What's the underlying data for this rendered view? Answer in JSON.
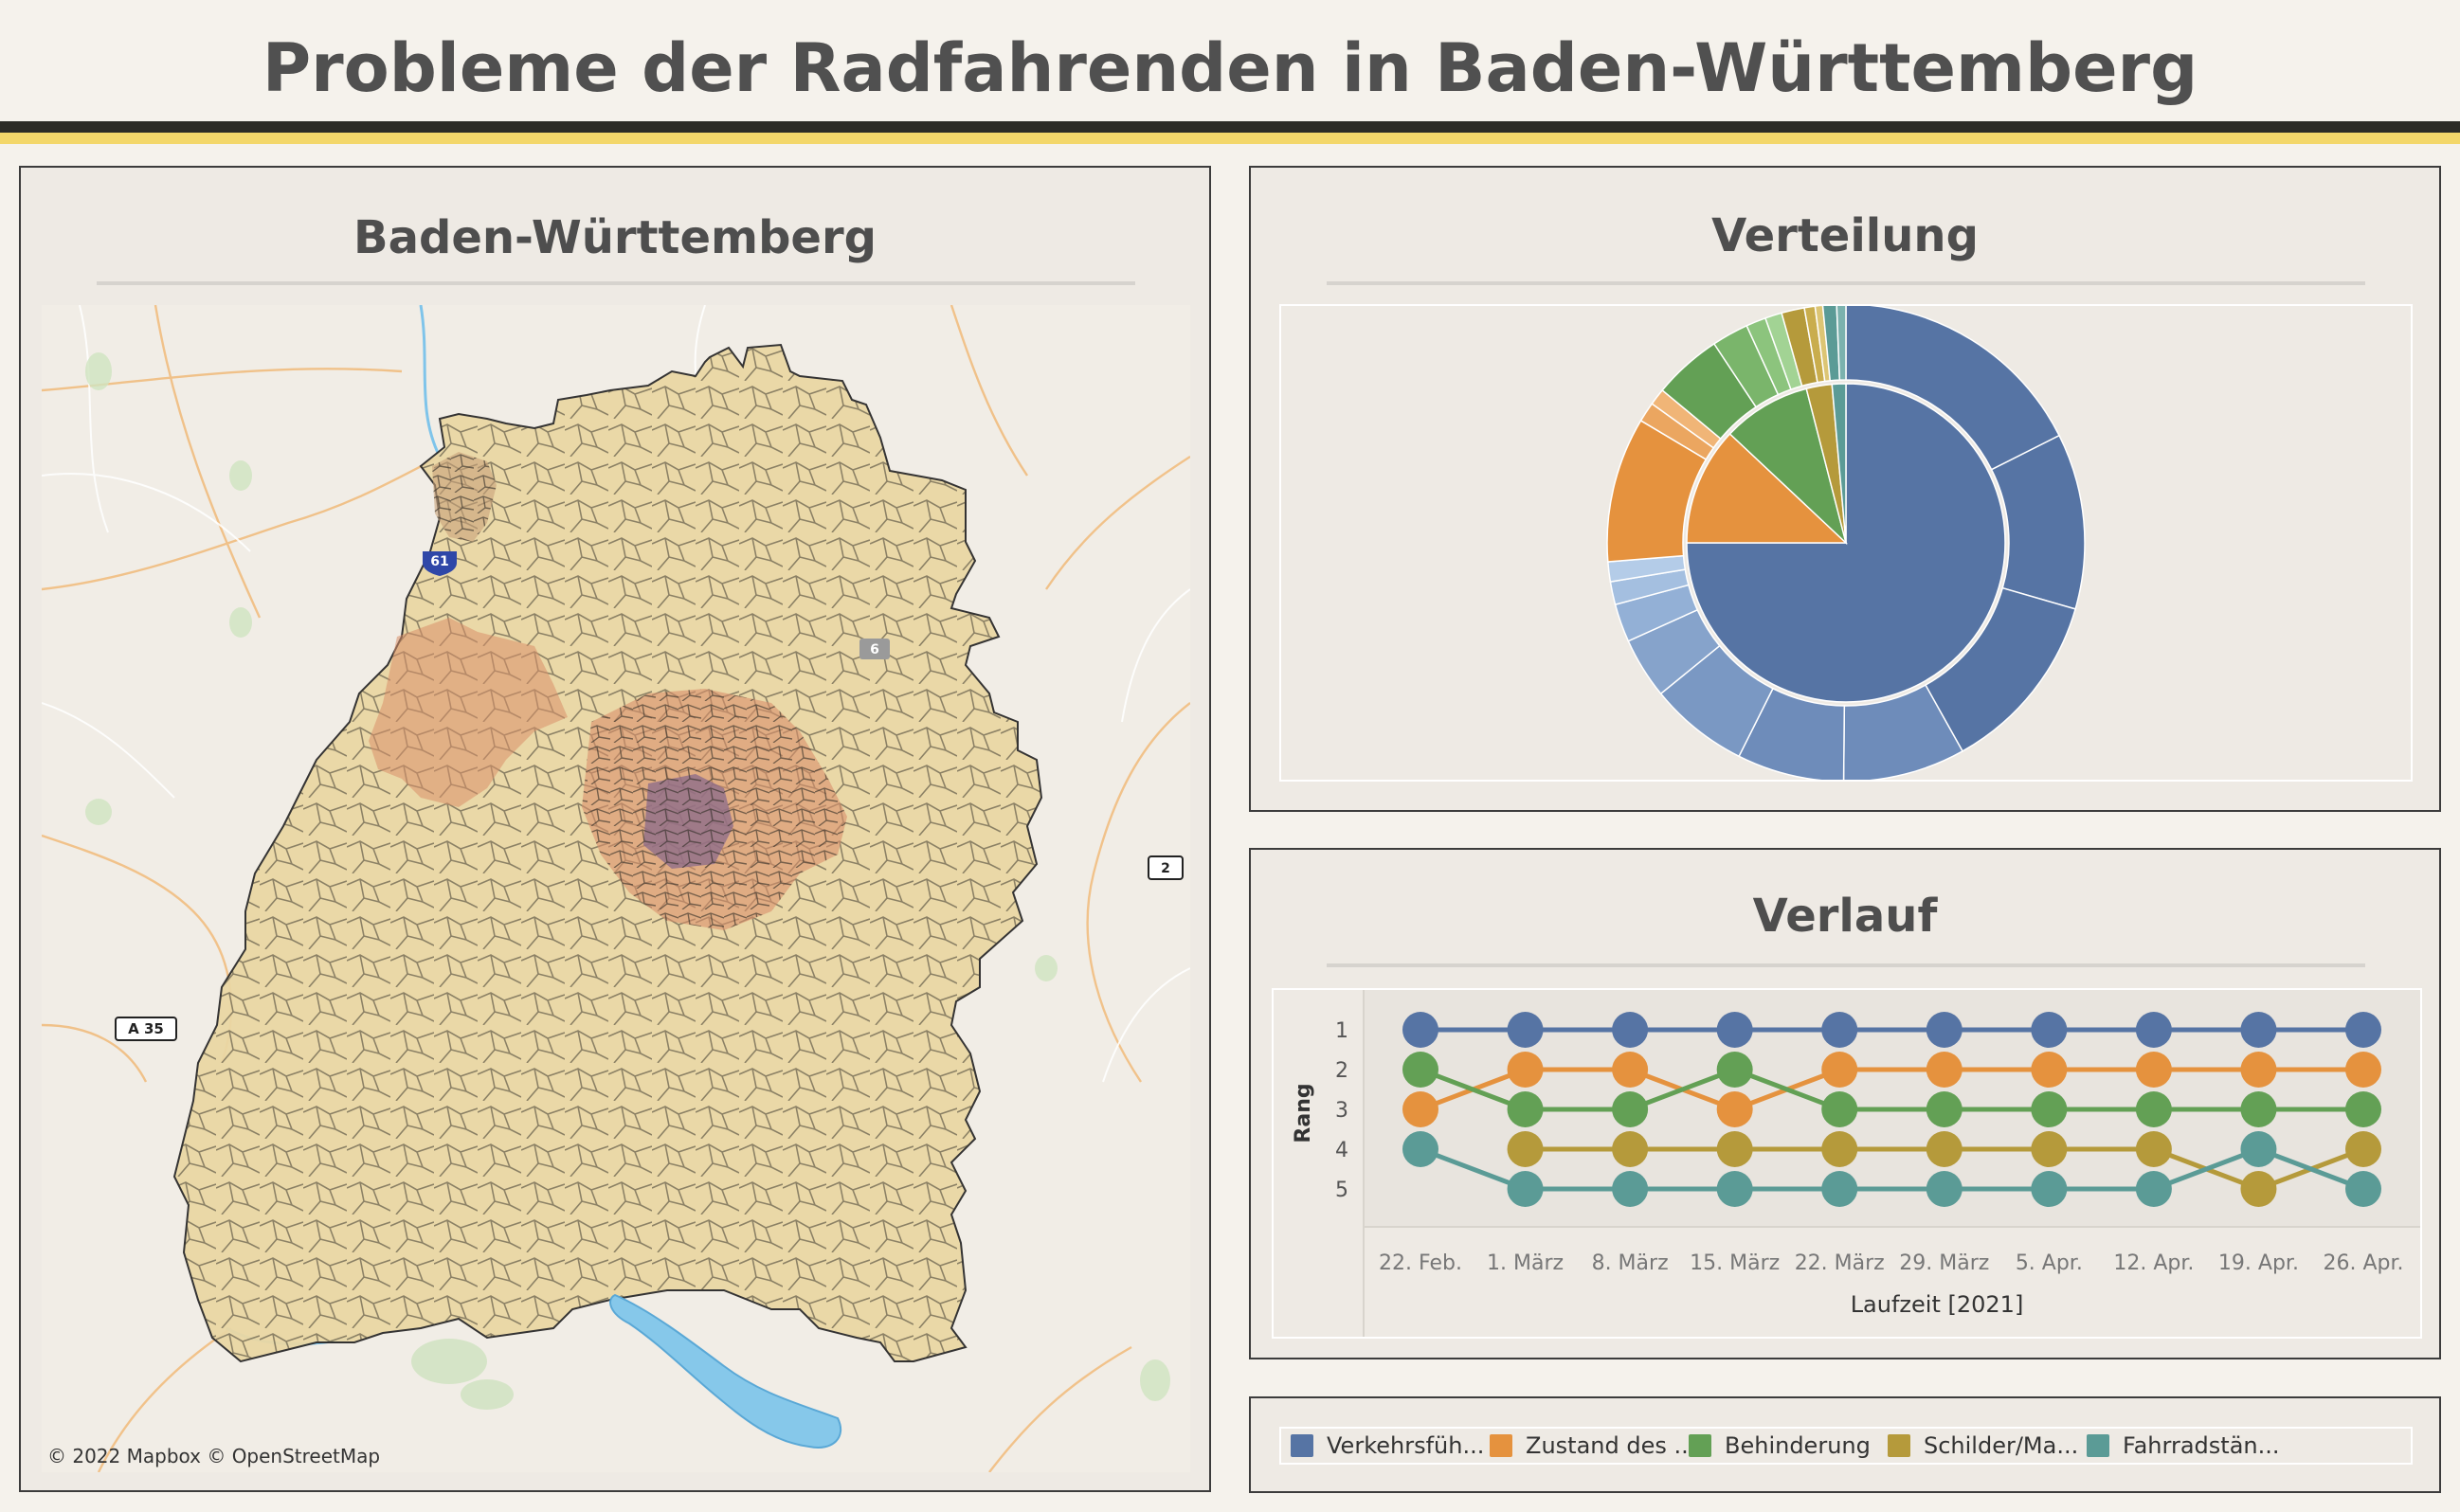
{
  "page": {
    "title": "Probleme der Radfahrenden in Baden-Württemberg"
  },
  "colors": {
    "blue": "#5674a4",
    "orange": "#e5923e",
    "green": "#63a055",
    "olive": "#b59a3b",
    "teal": "#5b9b96",
    "bg": "#f5f2ec",
    "panel": "#eeeae4"
  },
  "map_panel": {
    "title": "Baden-Württemberg",
    "attribution": "© 2022 Mapbox  © OpenStreetMap",
    "road_labels": [
      "61",
      "6",
      "2",
      "A 35"
    ]
  },
  "pie_panel": {
    "title": "Verteilung"
  },
  "line_panel": {
    "title": "Verlauf",
    "ylabel": "Rang",
    "xlabel": "Laufzeit [2021]",
    "y_ticks": [
      "1",
      "2",
      "3",
      "4",
      "5"
    ],
    "x_ticks": [
      "22. Feb.",
      "1. März",
      "8. März",
      "15. März",
      "22. März",
      "29. März",
      "5. Apr.",
      "12. Apr.",
      "19. Apr.",
      "26. Apr."
    ]
  },
  "legend": {
    "items": [
      {
        "label": "Verkehrsfüh...",
        "color": "#5674a4"
      },
      {
        "label": "Zustand des ...",
        "color": "#e5923e"
      },
      {
        "label": "Behinderung",
        "color": "#63a055"
      },
      {
        "label": "Schilder/Ma...",
        "color": "#b59a3b"
      },
      {
        "label": "Fahrradstän...",
        "color": "#5b9b96"
      }
    ]
  },
  "chart_data": [
    {
      "type": "pie",
      "title": "Verteilung",
      "inner_ring": [
        {
          "name": "Verkehrsfüh...",
          "value": 75,
          "color": "#5674a4"
        },
        {
          "name": "Zustand des ...",
          "value": 12,
          "color": "#e5923e"
        },
        {
          "name": "Behinderung",
          "value": 9,
          "color": "#63a055"
        },
        {
          "name": "Schilder/Ma...",
          "value": 2.6,
          "color": "#b59a3b"
        },
        {
          "name": "Fahrradstän...",
          "value": 1.4,
          "color": "#5b9b96"
        }
      ],
      "outer_ring": [
        {
          "value": 17,
          "color": "#5674a4"
        },
        {
          "value": 11.5,
          "color": "#5674a4"
        },
        {
          "value": 12,
          "color": "#5674a4"
        },
        {
          "value": 8,
          "color": "#6e8cba"
        },
        {
          "value": 7,
          "color": "#6e8cba"
        },
        {
          "value": 6.5,
          "color": "#7a98c3"
        },
        {
          "value": 4,
          "color": "#86a3cb"
        },
        {
          "value": 2.5,
          "color": "#93b0d6"
        },
        {
          "value": 1.5,
          "color": "#a4bfe0"
        },
        {
          "value": 1.3,
          "color": "#b4cce8"
        },
        {
          "value": 9.5,
          "color": "#e5923e"
        },
        {
          "value": 1.3,
          "color": "#eba660"
        },
        {
          "value": 1.1,
          "color": "#f0b577"
        },
        {
          "value": 4.5,
          "color": "#63a055"
        },
        {
          "value": 2.4,
          "color": "#7ab56b"
        },
        {
          "value": 1.3,
          "color": "#8cc47d"
        },
        {
          "value": 1.1,
          "color": "#a2d394"
        },
        {
          "value": 1.5,
          "color": "#b59a3b"
        },
        {
          "value": 0.7,
          "color": "#c9ad4d"
        },
        {
          "value": 0.5,
          "color": "#dcc574"
        },
        {
          "value": 0.9,
          "color": "#5b9b96"
        },
        {
          "value": 0.6,
          "color": "#7bb2ae"
        }
      ]
    },
    {
      "type": "line",
      "title": "Verlauf",
      "xlabel": "Laufzeit [2021]",
      "ylabel": "Rang",
      "ylim": [
        1,
        5
      ],
      "y_inverted": true,
      "x": [
        "22. Feb.",
        "1. März",
        "8. März",
        "15. März",
        "22. März",
        "29. März",
        "5. Apr.",
        "12. Apr.",
        "19. Apr.",
        "26. Apr."
      ],
      "series": [
        {
          "name": "Verkehrsfüh...",
          "color": "#5674a4",
          "values": [
            1,
            1,
            1,
            1,
            1,
            1,
            1,
            1,
            1,
            1
          ]
        },
        {
          "name": "Zustand des ...",
          "color": "#e5923e",
          "values": [
            3,
            2,
            2,
            3,
            2,
            2,
            2,
            2,
            2,
            2
          ]
        },
        {
          "name": "Behinderung",
          "color": "#63a055",
          "values": [
            2,
            3,
            3,
            2,
            3,
            3,
            3,
            3,
            3,
            3
          ]
        },
        {
          "name": "Schilder/Ma...",
          "color": "#b59a3b",
          "values": [
            null,
            4,
            4,
            4,
            4,
            4,
            4,
            4,
            5,
            4
          ]
        },
        {
          "name": "Fahrradstän...",
          "color": "#5b9b96",
          "values": [
            4,
            5,
            5,
            5,
            5,
            5,
            5,
            5,
            4,
            5
          ]
        }
      ]
    }
  ]
}
